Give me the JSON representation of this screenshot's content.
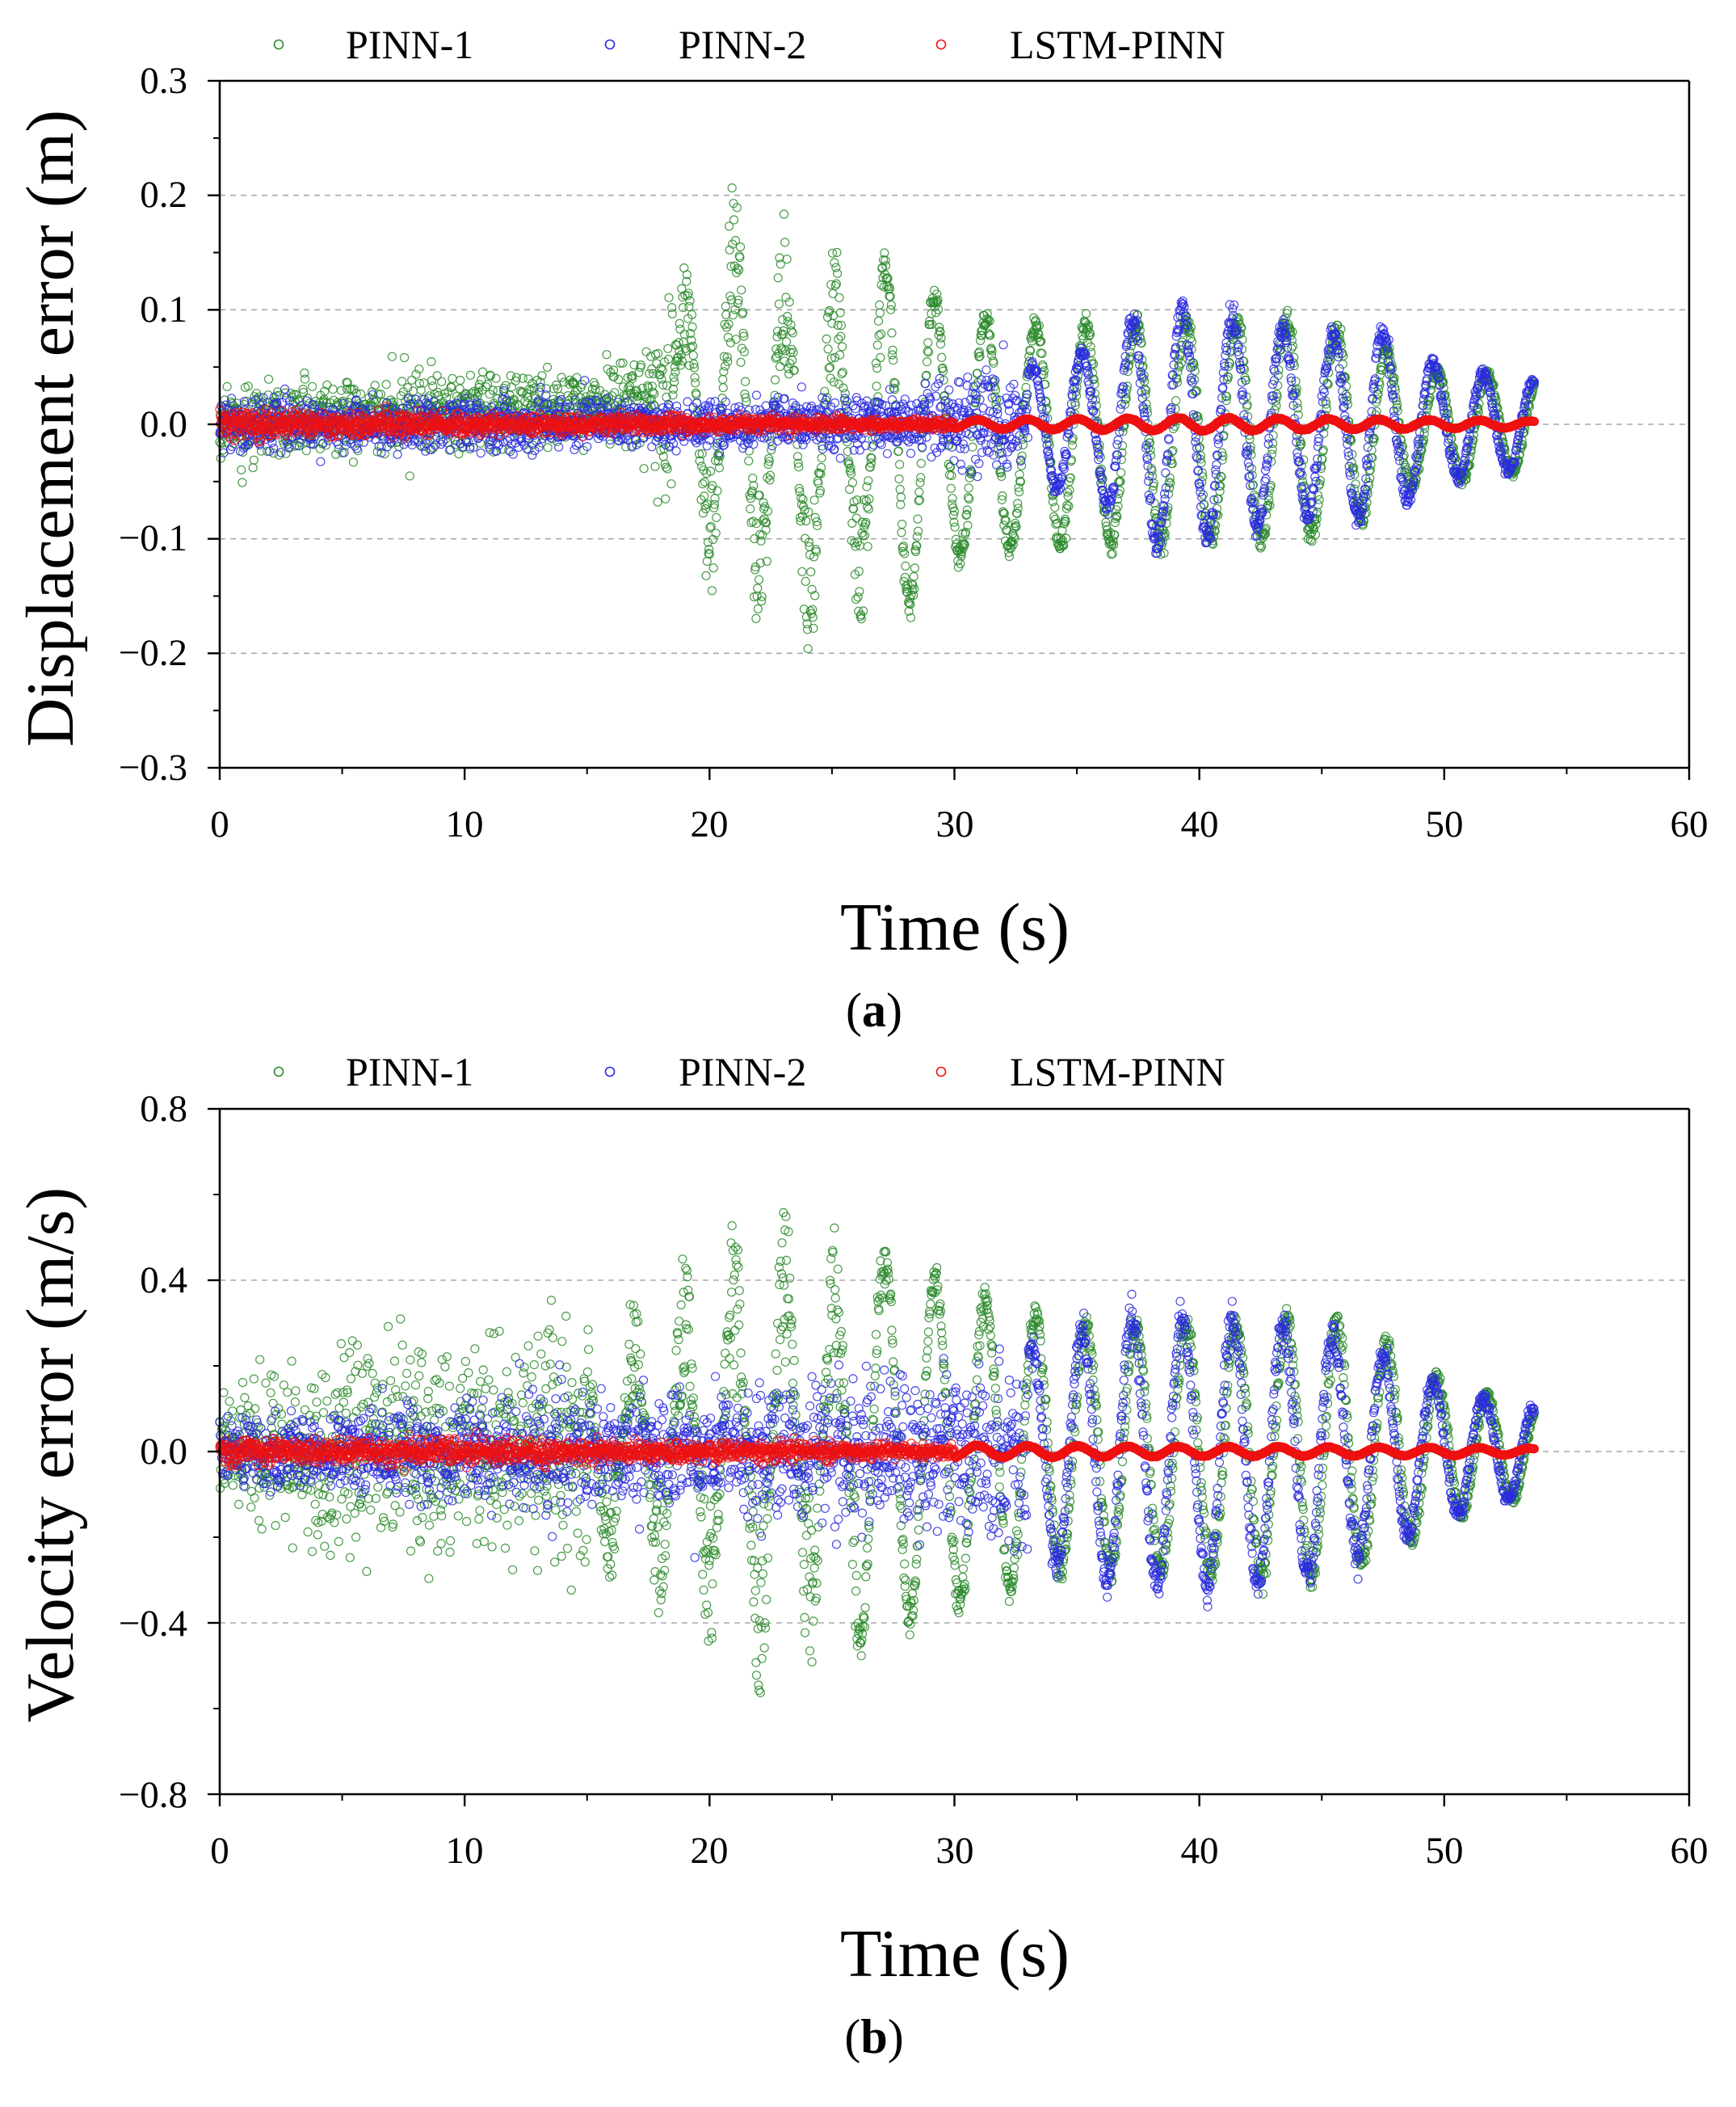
{
  "colors": {
    "pinn1": "#2a8a2a",
    "pinn2": "#2a2ae0",
    "lstm": "#ee1010",
    "grid": "#a8a8a8",
    "axis": "#000000"
  },
  "chart_data": [
    {
      "type": "scatter",
      "panel_label": "a",
      "xlabel": "Time (s)",
      "ylabel": "Displacement error (m)",
      "xlim": [
        0,
        60
      ],
      "ylim": [
        -0.3,
        0.3
      ],
      "xticks": [
        0,
        10,
        20,
        30,
        40,
        50,
        60
      ],
      "xtick_labels": [
        "0",
        "10",
        "20",
        "30",
        "40",
        "50",
        "60"
      ],
      "yticks": [
        -0.3,
        -0.2,
        -0.1,
        0.0,
        0.1,
        0.2,
        0.3
      ],
      "ytick_labels": [
        "−0.3",
        "−0.2",
        "−0.1",
        "0.0",
        "0.1",
        "0.2",
        "0.3"
      ],
      "gridlines_y": [
        -0.2,
        -0.1,
        0.0,
        0.1,
        0.2
      ],
      "legend": [
        "PINN-1",
        "PINN-2",
        "LSTM-PINN"
      ],
      "series": [
        {
          "name": "PINN-1",
          "color": "#2a8a2a",
          "t_end": 53.7,
          "envelope": [
            [
              0,
              0.03
            ],
            [
              10,
              0.035
            ],
            [
              17,
              0.04
            ],
            [
              19,
              0.12
            ],
            [
              20.5,
              0.21
            ],
            [
              22,
              0.2
            ],
            [
              24,
              0.19
            ],
            [
              26,
              0.17
            ],
            [
              28,
              0.15
            ],
            [
              30,
              0.11
            ],
            [
              34,
              0.1
            ],
            [
              40,
              0.1
            ],
            [
              44,
              0.1
            ],
            [
              47,
              0.08
            ],
            [
              49,
              0.05
            ],
            [
              51,
              0.05
            ],
            [
              53.7,
              0.04
            ]
          ],
          "bias": [
            [
              0,
              0
            ],
            [
              20,
              0.02
            ],
            [
              24,
              -0.02
            ],
            [
              30,
              -0.01
            ],
            [
              53.7,
              0
            ]
          ],
          "osc_start": 27,
          "period": 2.05
        },
        {
          "name": "PINN-2",
          "color": "#2a2ae0",
          "t_end": 53.7,
          "envelope": [
            [
              0,
              0.025
            ],
            [
              10,
              0.025
            ],
            [
              19,
              0.02
            ],
            [
              27,
              0.025
            ],
            [
              33,
              0.05
            ],
            [
              36,
              0.07
            ],
            [
              38,
              0.11
            ],
            [
              41,
              0.1
            ],
            [
              45,
              0.08
            ],
            [
              47,
              0.09
            ],
            [
              50,
              0.05
            ],
            [
              53.7,
              0.04
            ]
          ],
          "bias": [
            [
              0,
              0
            ],
            [
              53.7,
              0
            ]
          ],
          "osc_start": 33,
          "period": 2.05
        },
        {
          "name": "LSTM-PINN",
          "color": "#ee1010",
          "t_end": 53.7,
          "envelope": [
            [
              0,
              0.012
            ],
            [
              10,
              0.01
            ],
            [
              20,
              0.008
            ],
            [
              30,
              0.004
            ],
            [
              40,
              0.006
            ],
            [
              50,
              0.004
            ],
            [
              53.7,
              0.003
            ]
          ],
          "bias": [
            [
              0,
              0
            ],
            [
              53.7,
              0
            ]
          ],
          "osc_start": 30,
          "period": 2.05
        }
      ]
    },
    {
      "type": "scatter",
      "panel_label": "b",
      "xlabel": "Time (s)",
      "ylabel": "Velocity error (m/s)",
      "xlim": [
        0,
        60
      ],
      "ylim": [
        -0.8,
        0.8
      ],
      "xticks": [
        0,
        10,
        20,
        30,
        40,
        50,
        60
      ],
      "xtick_labels": [
        "0",
        "10",
        "20",
        "30",
        "40",
        "50",
        "60"
      ],
      "yticks": [
        -0.8,
        -0.4,
        0.0,
        0.4,
        0.8
      ],
      "ytick_labels": [
        "−0.8",
        "−0.4",
        "0.0",
        "0.4",
        "0.8"
      ],
      "gridlines_y": [
        -0.4,
        0.0,
        0.4
      ],
      "legend": [
        "PINN-1",
        "PINN-2",
        "LSTM-PINN"
      ],
      "series": [
        {
          "name": "PINN-1",
          "color": "#2a8a2a",
          "t_end": 53.7,
          "envelope": [
            [
              0,
              0.15
            ],
            [
              5,
              0.25
            ],
            [
              12,
              0.25
            ],
            [
              18,
              0.4
            ],
            [
              20,
              0.5
            ],
            [
              22,
              0.6
            ],
            [
              24,
              0.55
            ],
            [
              26,
              0.5
            ],
            [
              28,
              0.42
            ],
            [
              30,
              0.4
            ],
            [
              34,
              0.3
            ],
            [
              40,
              0.3
            ],
            [
              45,
              0.32
            ],
            [
              48,
              0.25
            ],
            [
              50,
              0.17
            ],
            [
              53.7,
              0.1
            ]
          ],
          "bias": [
            [
              0,
              0
            ],
            [
              22,
              0.02
            ],
            [
              53.7,
              0
            ]
          ],
          "osc_start": 26,
          "period": 2.05
        },
        {
          "name": "PINN-2",
          "color": "#2a2ae0",
          "t_end": 53.7,
          "envelope": [
            [
              0,
              0.08
            ],
            [
              10,
              0.12
            ],
            [
              20,
              0.15
            ],
            [
              28,
              0.18
            ],
            [
              33,
              0.25
            ],
            [
              37,
              0.33
            ],
            [
              42,
              0.33
            ],
            [
              45,
              0.3
            ],
            [
              48,
              0.22
            ],
            [
              50,
              0.16
            ],
            [
              53.7,
              0.1
            ]
          ],
          "bias": [
            [
              0,
              0
            ],
            [
              53.7,
              0
            ]
          ],
          "osc_start": 33,
          "period": 2.05
        },
        {
          "name": "LSTM-PINN",
          "color": "#ee1010",
          "t_end": 53.7,
          "envelope": [
            [
              0,
              0.035
            ],
            [
              10,
              0.03
            ],
            [
              20,
              0.025
            ],
            [
              30,
              0.015
            ],
            [
              40,
              0.012
            ],
            [
              50,
              0.01
            ],
            [
              53.7,
              0.008
            ]
          ],
          "bias": [
            [
              0,
              0
            ],
            [
              53.7,
              0
            ]
          ],
          "osc_start": 30,
          "period": 2.05
        }
      ]
    }
  ]
}
